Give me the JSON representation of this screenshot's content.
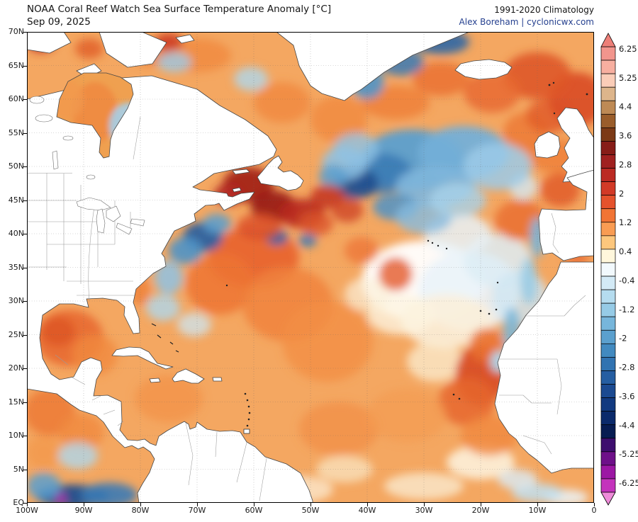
{
  "header": {
    "title": "NOAA Coral Reef Watch Sea Surface Temperature Anomaly [°C]",
    "date": "Sep 09, 2025",
    "climatology": "1991-2020 Climatology",
    "credit": "Alex Boreham | cyclonicwx.com"
  },
  "axes": {
    "lat_labels": [
      "70N",
      "65N",
      "60N",
      "55N",
      "50N",
      "45N",
      "40N",
      "35N",
      "30N",
      "25N",
      "20N",
      "15N",
      "10N",
      "5N",
      "EQ"
    ],
    "lon_labels": [
      "100W",
      "90W",
      "80W",
      "70W",
      "60W",
      "50W",
      "40W",
      "30W",
      "20W",
      "10W",
      "0"
    ]
  },
  "colorbar": {
    "labels": [
      "6.25",
      "5.25",
      "4.4",
      "3.6",
      "2.8",
      "2",
      "1.2",
      "0.4",
      "-0.4",
      "-1.2",
      "-2",
      "-2.8",
      "-3.6",
      "-4.4",
      "-5.25",
      "-6.25"
    ],
    "arrow_top": "#ED7F78",
    "arrow_bottom": "#EE8BD9",
    "segments": [
      "#F2958D",
      "#F7AFA0",
      "#FACDB8",
      "#DDB58B",
      "#BE8A55",
      "#9A5D2B",
      "#7C3A16",
      "#871D18",
      "#A02120",
      "#BB2A23",
      "#D23A27",
      "#E5522C",
      "#F17435",
      "#F99C53",
      "#FDC77D",
      "#FFF7DC",
      "#F2F9FD",
      "#D3EAF6",
      "#B5DCEF",
      "#96CBE6",
      "#77B6DB",
      "#5BA0CE",
      "#428AC0",
      "#3173B1",
      "#255EA2",
      "#1B4A91",
      "#123A80",
      "#0B2A6B",
      "#071C52",
      "#3D0E6E",
      "#6E1089",
      "#9C17A4",
      "#C433BC"
    ]
  },
  "chart_data": {
    "type": "heatmap",
    "subtype": "geographic-sst-anomaly-map",
    "title": "NOAA Coral Reef Watch Sea Surface Temperature Anomaly [°C]",
    "date": "Sep 09, 2025",
    "climatology": "1991-2020 Climatology",
    "units": "°C",
    "extent": {
      "lon_west": 100,
      "lon_east": 0,
      "lat_south": 0,
      "lat_north": 70
    },
    "scale_range": [
      -6.25,
      6.25
    ],
    "ocean_base_anomaly_c": 1.0,
    "ocean_base_color": "#F4A761",
    "notable_features": [
      "Strong warm anomaly (+3 to +4.5) Gulf of St Lawrence / south of Newfoundland",
      "Large cool pool (-1 to -3) central North Atlantic 45-60N, 10-45W",
      "Cold pool (-2 to -3) off US Northeast coast 35-42N",
      "Very warm (+2 to +3) NE Atlantic / Norwegian Sea near Iceland-UK",
      "Warm (+1.5 to +2.5) Gulf of Mexico and western subtropical Atlantic",
      "Strong warm (+2 to +3) off NW Africa with coastal upwelling cool strip",
      "Cold equatorial Pacific tongue (-3 to -5, magenta spot) bottom-left corner",
      "Neutral/slightly cool mottled eastern subtropics near Azores"
    ],
    "regions_format": [
      "lon_w",
      "lat_n",
      "rx_deg",
      "ry_deg",
      "color",
      "opacity",
      "layer(optional)"
    ],
    "regions": [
      [
        30,
        33,
        11,
        6,
        "#FFFFFF",
        0.95
      ],
      [
        22,
        31.5,
        9,
        6,
        "#EAF3F9",
        0.9
      ],
      [
        17,
        36,
        6,
        4,
        "#DDEDF6",
        0.85
      ],
      [
        26,
        27,
        8,
        4,
        "#FBF0DA",
        0.9
      ],
      [
        13,
        30.5,
        5,
        4,
        "#CFE6F3",
        0.8
      ],
      [
        24,
        40,
        6,
        3,
        "#E8F2F8",
        0.85
      ],
      [
        34,
        28,
        6,
        3,
        "#FDF4E0",
        0.8
      ],
      [
        20,
        6,
        6,
        2.5,
        "#FDF4E2",
        0.85
      ],
      [
        30,
        2.5,
        7,
        2,
        "#FAEACE",
        0.8
      ],
      [
        28,
        21,
        5,
        3,
        "#FBEDD2",
        0.75
      ],
      [
        12.5,
        47,
        2.5,
        2,
        "#D5E8F3",
        0.8
      ],
      [
        40,
        31,
        4,
        2.5,
        "#FBEFD8",
        0.7
      ],
      [
        52,
        2,
        6,
        2,
        "#FCF1DC",
        0.7
      ],
      [
        44,
        5,
        5,
        2,
        "#FAE8C8",
        0.7
      ],
      [
        5,
        0.8,
        4,
        1.2,
        "#EAF4FA",
        0.85
      ],
      [
        10,
        1.5,
        4.5,
        1.4,
        "#BFDFF0",
        0.85
      ],
      [
        13.5,
        3.5,
        3.5,
        1.5,
        "#D9ECF7",
        0.8
      ],
      [
        60,
        36.5,
        8,
        4.5,
        "#E8622E",
        0.9
      ],
      [
        66,
        32.5,
        6,
        4.5,
        "#ED7434",
        0.85
      ],
      [
        54,
        29.5,
        8,
        5.5,
        "#F0823C",
        0.85
      ],
      [
        47,
        24,
        8,
        6,
        "#F28F45",
        0.8
      ],
      [
        35,
        34,
        3,
        2.5,
        "#E45A2A",
        0.8
      ],
      [
        41,
        37.5,
        3,
        2,
        "#EC7434",
        0.75
      ],
      [
        92.5,
        24.5,
        6,
        4.2,
        "#E86A30",
        0.9
      ],
      [
        94.5,
        25.5,
        3,
        2.2,
        "#DE5628",
        0.85
      ],
      [
        88,
        22,
        4,
        3,
        "#F08A40",
        0.8
      ],
      [
        75,
        15.5,
        6,
        3.5,
        "#F2944A",
        0.8
      ],
      [
        96,
        13.5,
        4.5,
        3.5,
        "#EC7A36",
        0.85
      ],
      [
        90.5,
        10.5,
        4,
        2.8,
        "#F08A40",
        0.8
      ],
      [
        97,
        7.5,
        3,
        2.5,
        "#F2994E",
        0.8
      ],
      [
        20,
        19,
        4.5,
        4.5,
        "#D84A24",
        0.9
      ],
      [
        22.5,
        15,
        5,
        3.5,
        "#E6662F",
        0.85
      ],
      [
        19,
        23.5,
        3,
        2.5,
        "#EA7233",
        0.85
      ],
      [
        18.5,
        10,
        5,
        3,
        "#F0883E",
        0.8
      ],
      [
        45,
        11,
        7,
        4,
        "#F28F45",
        0.75
      ],
      [
        33,
        13,
        7,
        4,
        "#F49B52",
        0.7
      ],
      [
        13,
        42,
        4.5,
        3,
        "#EA7233",
        0.9
      ],
      [
        6,
        46.5,
        3.5,
        2.5,
        "#E2602C",
        0.9
      ],
      [
        6.5,
        51.5,
        5,
        2.5,
        "#EE8038",
        0.85
      ],
      [
        12,
        55,
        4,
        3,
        "#EC7A36",
        0.85
      ],
      [
        8,
        57.5,
        4,
        2.5,
        "#E2602C",
        0.9
      ],
      [
        3,
        60,
        5,
        4,
        "#DA4F26",
        0.95
      ],
      [
        10,
        63.5,
        6,
        3.5,
        "#DE5628",
        0.9
      ],
      [
        18,
        61,
        5,
        3,
        "#E86A31",
        0.85
      ],
      [
        35,
        59.5,
        6,
        2.5,
        "#EE8038",
        0.85
      ],
      [
        27,
        63,
        5,
        2.5,
        "#EA7233",
        0.85
      ],
      [
        45,
        57,
        5,
        3.5,
        "#F08A40",
        0.8
      ],
      [
        55,
        59.5,
        5,
        3,
        "#F0883E",
        0.8
      ],
      [
        70,
        66.5,
        6,
        2.5,
        "#F08A40",
        0.8
      ],
      [
        78,
        67,
        4,
        2,
        "#EC7A36",
        0.8
      ],
      [
        80,
        31.5,
        1.8,
        2.2,
        "#EE8038",
        0.8
      ],
      [
        3,
        36.3,
        2.2,
        0.9,
        "#E86A31",
        0.85
      ],
      [
        32,
        51,
        9,
        4.5,
        "#5B9FCF",
        0.95
      ],
      [
        23,
        52,
        8,
        4,
        "#74AFD8",
        0.95
      ],
      [
        38,
        49,
        6,
        3,
        "#3B7AB5",
        0.9
      ],
      [
        42,
        47.5,
        4,
        2.3,
        "#1E4E8E",
        0.9
      ],
      [
        44,
        50.5,
        4,
        2.5,
        "#8FC2E4",
        0.85
      ],
      [
        28,
        47,
        7,
        3,
        "#7FB6DC",
        0.9
      ],
      [
        17,
        50,
        6,
        3.5,
        "#9CCAE8",
        0.85
      ],
      [
        35,
        44,
        4,
        2,
        "#4F93C6",
        0.85
      ],
      [
        30,
        42.5,
        5,
        2.5,
        "#86BCE0",
        0.8
      ],
      [
        24,
        45,
        5,
        2.5,
        "#A7D2EA",
        0.8
      ],
      [
        40,
        62.5,
        3,
        2.5,
        "#4F93C6",
        0.9
      ],
      [
        34,
        65.5,
        4,
        2,
        "#3B7AB5",
        0.85
      ],
      [
        27,
        68.5,
        5,
        1.8,
        "#2B66A5",
        0.9
      ],
      [
        69,
        39.5,
        3.5,
        2.2,
        "#2B5F9E",
        0.95
      ],
      [
        72,
        37.5,
        3,
        2,
        "#4F93C6",
        0.9
      ],
      [
        75,
        33.5,
        2.5,
        2.5,
        "#8FC2E4",
        0.85
      ],
      [
        66.5,
        41.5,
        2.5,
        1.5,
        "#5B9FCF",
        0.85
      ],
      [
        76,
        29,
        3,
        2,
        "#AFD7EC",
        0.8
      ],
      [
        70.5,
        26.5,
        3,
        1.8,
        "#CCE5F3",
        0.75
      ],
      [
        56,
        39.5,
        2,
        1.2,
        "#2B66A5",
        0.9
      ],
      [
        50.5,
        39,
        1.6,
        1,
        "#3B7AB5",
        0.85
      ],
      [
        46,
        48.5,
        2.5,
        1.8,
        "#5B9FCF",
        0.85
      ],
      [
        42,
        52.5,
        4,
        2.5,
        "#8FC2E4",
        0.8
      ],
      [
        92,
        1,
        6.5,
        1.7,
        "#1E4E8E",
        0.95
      ],
      [
        85.5,
        1.2,
        5,
        1.8,
        "#3B7AB5",
        0.9
      ],
      [
        97,
        2.5,
        3,
        2,
        "#5B9FCF",
        0.85
      ],
      [
        91,
        7,
        3.5,
        2,
        "#AFD7EC",
        0.8
      ],
      [
        10,
        39.5,
        1.3,
        3,
        "#77B6DB",
        0.9
      ],
      [
        11.5,
        33,
        1.5,
        3.5,
        "#96CBE6",
        0.85
      ],
      [
        14.5,
        25.5,
        1.6,
        3.5,
        "#77B6DB",
        0.85
      ],
      [
        16.8,
        21,
        1.5,
        1.6,
        "#AFD7EC",
        0.95
      ],
      [
        60.5,
        63,
        3,
        1.8,
        "#AFD7EC",
        0.8
      ],
      [
        74,
        65.5,
        3,
        1.5,
        "#9CCAE8",
        0.8
      ],
      [
        61,
        47.3,
        4.5,
        2.6,
        "#A32119",
        0.95
      ],
      [
        64.5,
        45.8,
        2.6,
        1.6,
        "#B22822",
        0.9
      ],
      [
        56.5,
        44,
        4,
        2.4,
        "#9A1B15",
        0.95
      ],
      [
        51.5,
        43,
        4,
        2.2,
        "#B82A1E",
        0.9
      ],
      [
        47,
        45.5,
        3,
        1.8,
        "#C23322",
        0.85
      ],
      [
        43.5,
        43.5,
        2.8,
        1.8,
        "#CE4427",
        0.8
      ],
      [
        49,
        41.5,
        3,
        1.8,
        "#DB5429",
        0.8
      ],
      [
        59,
        41,
        4,
        2,
        "#DC5229",
        0.85
      ],
      [
        75,
        68.5,
        2.5,
        1.3,
        "#CC3B22",
        0.9
      ],
      [
        97.5,
        68.5,
        2.5,
        1.5,
        "#C23322",
        0.95
      ],
      [
        89,
        67.5,
        2.5,
        1.5,
        "#E2602C",
        0.85
      ],
      [
        94,
        0.7,
        0.9,
        0.7,
        "#B21DB0",
        0.95
      ],
      [
        88,
        58,
        4,
        4.5,
        "#F08A40",
        0.9,
        "hudson"
      ],
      [
        93,
        60,
        3,
        3,
        "#F2994E",
        0.85,
        "hudson"
      ],
      [
        82,
        56,
        3.5,
        3.5,
        "#A5CFE9",
        0.9,
        "hudson"
      ],
      [
        81,
        53.5,
        2,
        2.5,
        "#C9E2F1",
        0.85,
        "hudson"
      ],
      [
        80.3,
        52,
        1.2,
        1.5,
        "#D84429",
        0.9,
        "hudson"
      ]
    ]
  }
}
